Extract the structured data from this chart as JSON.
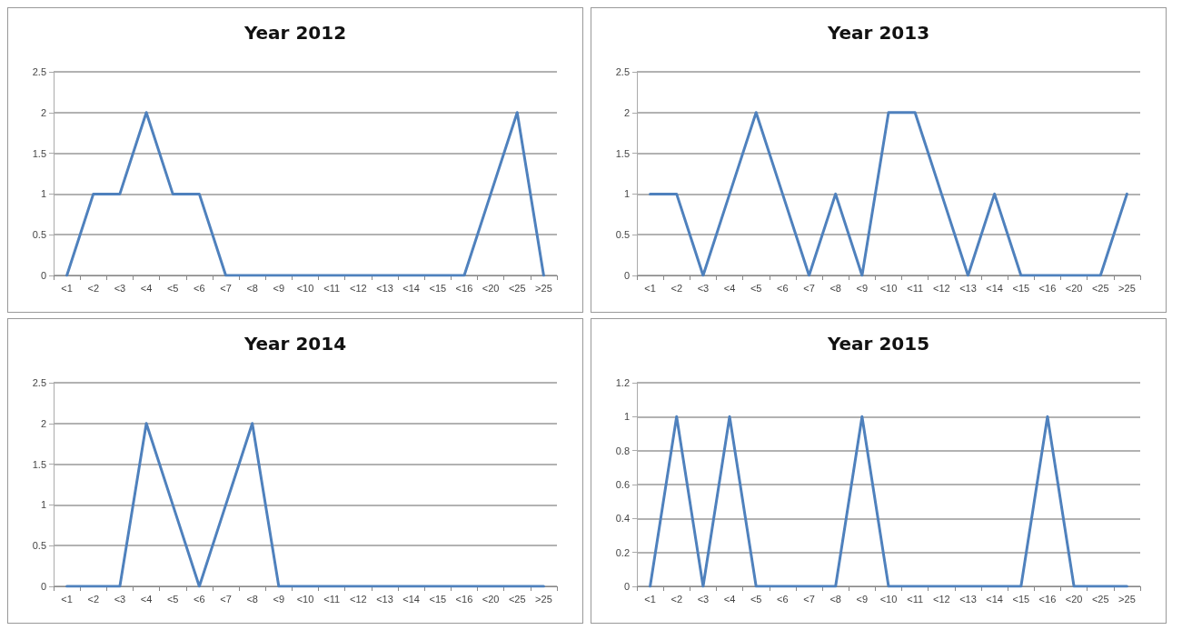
{
  "chart_data": [
    {
      "type": "line",
      "title": "Year 2012",
      "categories": [
        "<1",
        "<2",
        "<3",
        "<4",
        "<5",
        "<6",
        "<7",
        "<8",
        "<9",
        "<10",
        "<11",
        "<12",
        "<13",
        "<14",
        "<15",
        "<16",
        "<20",
        "<25",
        ">25"
      ],
      "series": [
        {
          "color": "#4f81bd",
          "values": [
            0,
            1,
            1,
            2,
            1,
            1,
            0,
            0,
            0,
            0,
            0,
            0,
            0,
            0,
            0,
            0,
            1,
            2,
            0
          ]
        }
      ],
      "ylim": [
        0,
        2.5
      ],
      "yticks": [
        0,
        0.5,
        1,
        1.5,
        2,
        2.5
      ],
      "grid": "y",
      "marker": "none"
    },
    {
      "type": "line",
      "title": "Year 2013",
      "categories": [
        "<1",
        "<2",
        "<3",
        "<4",
        "<5",
        "<6",
        "<7",
        "<8",
        "<9",
        "<10",
        "<11",
        "<12",
        "<13",
        "<14",
        "<15",
        "<16",
        "<20",
        "<25",
        ">25"
      ],
      "series": [
        {
          "color": "#4f81bd",
          "values": [
            1,
            1,
            0,
            1,
            2,
            1,
            0,
            1,
            0,
            2,
            2,
            1,
            0,
            1,
            0,
            0,
            0,
            0,
            1
          ]
        }
      ],
      "ylim": [
        0,
        2.5
      ],
      "yticks": [
        0,
        0.5,
        1,
        1.5,
        2,
        2.5
      ],
      "grid": "y",
      "marker": "none"
    },
    {
      "type": "line",
      "title": "Year 2014",
      "categories": [
        "<1",
        "<2",
        "<3",
        "<4",
        "<5",
        "<6",
        "<7",
        "<8",
        "<9",
        "<10",
        "<11",
        "<12",
        "<13",
        "<14",
        "<15",
        "<16",
        "<20",
        "<25",
        ">25"
      ],
      "series": [
        {
          "color": "#4f81bd",
          "values": [
            0,
            0,
            0,
            2,
            1,
            0,
            1,
            2,
            0,
            0,
            0,
            0,
            0,
            0,
            0,
            0,
            0,
            0,
            0
          ]
        }
      ],
      "ylim": [
        0,
        2.5
      ],
      "yticks": [
        0,
        0.5,
        1,
        1.5,
        2,
        2.5
      ],
      "grid": "y",
      "marker": "none"
    },
    {
      "type": "line",
      "title": "Year 2015",
      "categories": [
        "<1",
        "<2",
        "<3",
        "<4",
        "<5",
        "<6",
        "<7",
        "<8",
        "<9",
        "<10",
        "<11",
        "<12",
        "<13",
        "<14",
        "<15",
        "<16",
        "<20",
        "<25",
        ">25"
      ],
      "series": [
        {
          "color": "#4f81bd",
          "values": [
            0,
            1,
            0,
            1,
            0,
            0,
            0,
            0,
            1,
            0,
            0,
            0,
            0,
            0,
            0,
            1,
            0,
            0,
            0
          ]
        }
      ],
      "ylim": [
        0,
        1.2
      ],
      "yticks": [
        0,
        0.2,
        0.4,
        0.6,
        0.8,
        1,
        1.2
      ],
      "grid": "y",
      "marker": "none"
    }
  ]
}
